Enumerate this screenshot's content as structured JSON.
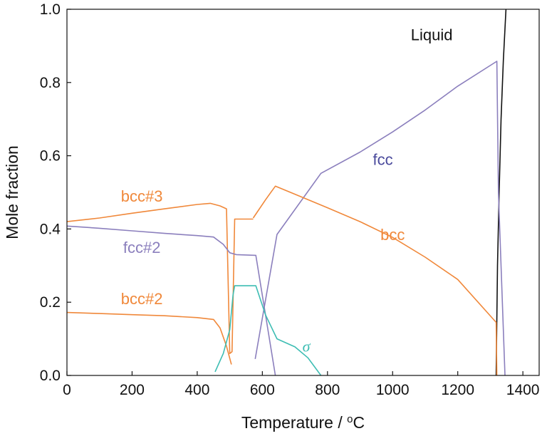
{
  "chart_data": {
    "type": "line",
    "xlabel": "Temperature / °C",
    "xlabel_prefix": "Temperature / ",
    "xlabel_sup": "o",
    "xlabel_suffix": "C",
    "ylabel": "Mole fraction",
    "xlim": [
      0,
      1450
    ],
    "ylim": [
      0,
      1.0
    ],
    "x_ticks": [
      "0",
      "200",
      "400",
      "600",
      "800",
      "1000",
      "1200",
      "1400"
    ],
    "x_tick_values": [
      0,
      200,
      400,
      600,
      800,
      1000,
      1200,
      1400
    ],
    "y_ticks": [
      "0.0",
      "0.2",
      "0.4",
      "0.6",
      "0.8",
      "1.0"
    ],
    "y_tick_values": [
      0,
      0.2,
      0.4,
      0.6,
      0.8,
      1.0
    ],
    "grid": false,
    "colors": {
      "orange": "#f0883a",
      "purple": "#8b7fbd",
      "teal": "#3dbdb3",
      "black": "#111111",
      "fcc_label": "#4a4a9c"
    },
    "series": [
      {
        "name": "Liquid",
        "color": "#111111",
        "label_at": [
          1120,
          0.915
        ],
        "points": [
          [
            1318,
            0.0
          ],
          [
            1322,
            0.3
          ],
          [
            1327,
            0.5
          ],
          [
            1333,
            0.7
          ],
          [
            1340,
            0.86
          ],
          [
            1348,
            1.0
          ]
        ]
      },
      {
        "name": "fcc",
        "color": "#8b7fbd",
        "label_color": "#4a4a9c",
        "label_at": [
          970,
          0.575
        ],
        "points": [
          [
            578,
            0.045
          ],
          [
            645,
            0.385
          ],
          [
            780,
            0.552
          ],
          [
            900,
            0.61
          ],
          [
            1000,
            0.665
          ],
          [
            1100,
            0.725
          ],
          [
            1200,
            0.79
          ],
          [
            1320,
            0.858
          ],
          [
            1325,
            0.5
          ],
          [
            1345,
            0.0
          ]
        ]
      },
      {
        "name": "bcc",
        "color": "#f0883a",
        "label_at": [
          1000,
          0.37
        ],
        "points": [
          [
            572,
            0.43
          ],
          [
            610,
            0.48
          ],
          [
            640,
            0.517
          ],
          [
            700,
            0.495
          ],
          [
            800,
            0.458
          ],
          [
            900,
            0.42
          ],
          [
            1000,
            0.377
          ],
          [
            1100,
            0.323
          ],
          [
            1200,
            0.262
          ],
          [
            1318,
            0.145
          ],
          [
            1320,
            0.0
          ]
        ]
      },
      {
        "name": "bcc#3",
        "color": "#f0883a",
        "label_at": [
          230,
          0.475
        ],
        "points": [
          [
            0,
            0.42
          ],
          [
            100,
            0.43
          ],
          [
            200,
            0.443
          ],
          [
            300,
            0.455
          ],
          [
            400,
            0.467
          ],
          [
            440,
            0.47
          ],
          [
            470,
            0.463
          ],
          [
            490,
            0.455
          ],
          [
            500,
            0.06
          ],
          [
            507,
            0.065
          ],
          [
            515,
            0.427
          ],
          [
            572,
            0.427
          ]
        ]
      },
      {
        "name": "fcc#2",
        "color": "#8b7fbd",
        "label_at": [
          230,
          0.335
        ],
        "points": [
          [
            0,
            0.408
          ],
          [
            100,
            0.402
          ],
          [
            200,
            0.395
          ],
          [
            300,
            0.388
          ],
          [
            400,
            0.382
          ],
          [
            450,
            0.378
          ],
          [
            480,
            0.358
          ],
          [
            500,
            0.335
          ],
          [
            520,
            0.33
          ],
          [
            580,
            0.328
          ],
          [
            640,
            0.0
          ]
        ]
      },
      {
        "name": "bcc#2",
        "color": "#f0883a",
        "label_at": [
          230,
          0.195
        ],
        "points": [
          [
            0,
            0.172
          ],
          [
            100,
            0.169
          ],
          [
            200,
            0.166
          ],
          [
            300,
            0.163
          ],
          [
            400,
            0.158
          ],
          [
            450,
            0.153
          ],
          [
            470,
            0.13
          ],
          [
            490,
            0.08
          ],
          [
            505,
            0.03
          ]
        ]
      },
      {
        "name": "σ",
        "color": "#3dbdb3",
        "label_at": [
          735,
          0.065
        ],
        "points": [
          [
            455,
            0.01
          ],
          [
            480,
            0.06
          ],
          [
            500,
            0.125
          ],
          [
            510,
            0.22
          ],
          [
            515,
            0.245
          ],
          [
            560,
            0.245
          ],
          [
            580,
            0.245
          ],
          [
            610,
            0.165
          ],
          [
            645,
            0.1
          ],
          [
            700,
            0.078
          ],
          [
            740,
            0.048
          ],
          [
            780,
            0.0
          ]
        ]
      }
    ]
  }
}
